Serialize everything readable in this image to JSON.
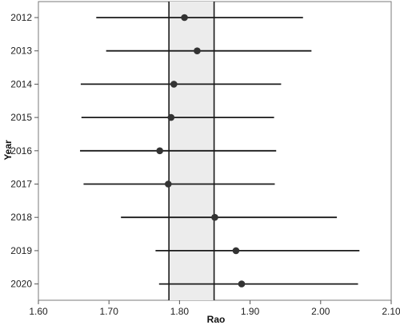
{
  "chart_data": {
    "type": "forest",
    "xlabel": "Rao",
    "ylabel": "Year",
    "xlim": [
      1.6,
      2.1
    ],
    "x_ticks": [
      "1.60",
      "1.70",
      "1.80",
      "1.90",
      "2.00",
      "2.10"
    ],
    "reference_band": {
      "lower": 1.785,
      "upper": 1.849
    },
    "rows": [
      {
        "year": "2012",
        "estimate": 1.807,
        "lower": 1.682,
        "upper": 1.975
      },
      {
        "year": "2013",
        "estimate": 1.825,
        "lower": 1.696,
        "upper": 1.987
      },
      {
        "year": "2014",
        "estimate": 1.792,
        "lower": 1.66,
        "upper": 1.944
      },
      {
        "year": "2015",
        "estimate": 1.788,
        "lower": 1.661,
        "upper": 1.934
      },
      {
        "year": "2016",
        "estimate": 1.772,
        "lower": 1.659,
        "upper": 1.937
      },
      {
        "year": "2017",
        "estimate": 1.784,
        "lower": 1.664,
        "upper": 1.935
      },
      {
        "year": "2018",
        "estimate": 1.85,
        "lower": 1.717,
        "upper": 2.023
      },
      {
        "year": "2019",
        "estimate": 1.88,
        "lower": 1.766,
        "upper": 2.055
      },
      {
        "year": "2020",
        "estimate": 1.888,
        "lower": 1.771,
        "upper": 2.053
      }
    ],
    "colors": {
      "band": "#ececec",
      "lines": "#1a1a1a",
      "points": "#333333"
    }
  }
}
